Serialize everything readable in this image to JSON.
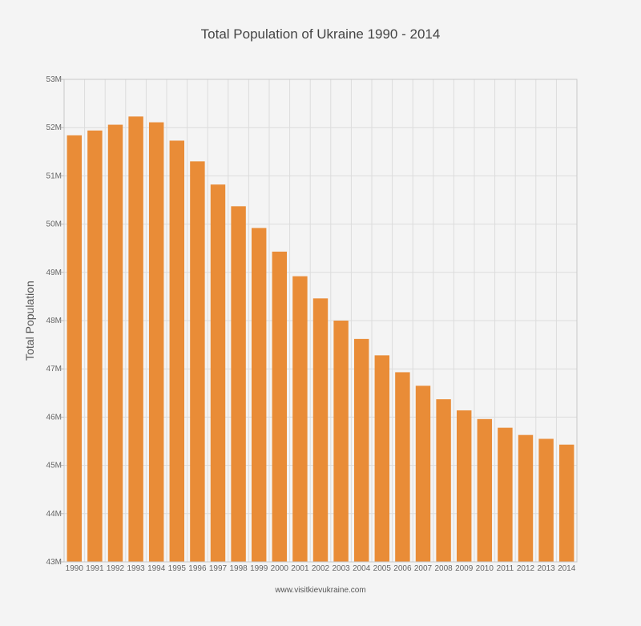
{
  "chart_data": {
    "type": "bar",
    "title": "Total Population of Ukraine 1990 - 2014",
    "xlabel": "",
    "ylabel": "Total Population",
    "ylim": [
      43,
      53
    ],
    "y_unit_suffix": "M",
    "y_ticks": [
      "43M",
      "44M",
      "45M",
      "46M",
      "47M",
      "48M",
      "49M",
      "50M",
      "51M",
      "52M",
      "53M"
    ],
    "grid": true,
    "legend": "none",
    "categories": [
      "1990",
      "1991",
      "1992",
      "1993",
      "1994",
      "1995",
      "1996",
      "1997",
      "1998",
      "1999",
      "2000",
      "2001",
      "2002",
      "2003",
      "2004",
      "2005",
      "2006",
      "2007",
      "2008",
      "2009",
      "2010",
      "2011",
      "2012",
      "2013",
      "2014"
    ],
    "values": [
      51.84,
      51.94,
      52.06,
      52.23,
      52.11,
      51.73,
      51.3,
      50.82,
      50.37,
      49.92,
      49.43,
      48.92,
      48.46,
      48.0,
      47.62,
      47.28,
      46.93,
      46.65,
      46.37,
      46.14,
      45.96,
      45.78,
      45.63,
      45.55,
      45.43
    ],
    "bar_color": "#e98c37",
    "source": "www.visitkievukraine.com"
  }
}
